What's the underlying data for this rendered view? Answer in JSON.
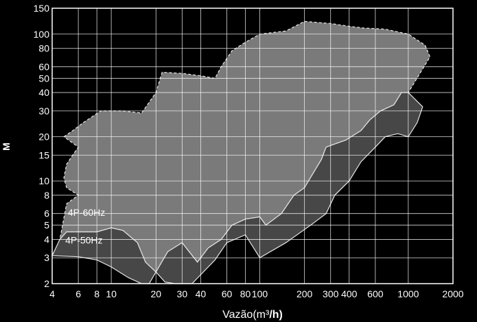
{
  "chart_data": {
    "type": "area",
    "xlabel_main": "Vazão",
    "xlabel_unit_open": "(m³",
    "xlabel_unit_close": "/h)",
    "ylabel": "M",
    "xscale": "log",
    "yscale": "log",
    "xlim": [
      4,
      2000
    ],
    "ylim": [
      2,
      150
    ],
    "grid": true,
    "x_ticks": [
      4,
      6,
      8,
      10,
      20,
      30,
      40,
      60,
      80,
      100,
      200,
      300,
      400,
      600,
      1000,
      2000
    ],
    "x_tick_labels": [
      "4",
      "6",
      "8",
      "10",
      "20",
      "30",
      "40",
      "60",
      "80",
      "100",
      "200",
      "300",
      "400",
      "600",
      "1000",
      "2000"
    ],
    "y_ticks": [
      2,
      3,
      4,
      5,
      6,
      8,
      10,
      15,
      20,
      30,
      40,
      50,
      60,
      80,
      100,
      150
    ],
    "y_tick_labels": [
      "2",
      "3",
      "4",
      "5",
      "6",
      "8",
      "10",
      "15",
      "20",
      "30",
      "40",
      "50",
      "60",
      "80",
      "100",
      "150"
    ],
    "series": [
      {
        "name": "4P-60Hz",
        "color": "#7a7a7a",
        "outline": [
          [
            4.8,
            20
          ],
          [
            5.5,
            22
          ],
          [
            6.5,
            25
          ],
          [
            8.5,
            30
          ],
          [
            12,
            30
          ],
          [
            16,
            29
          ],
          [
            20,
            40
          ],
          [
            22,
            55
          ],
          [
            30,
            54
          ],
          [
            40,
            52
          ],
          [
            50,
            50
          ],
          [
            55,
            60
          ],
          [
            65,
            77
          ],
          [
            80,
            88
          ],
          [
            100,
            100
          ],
          [
            150,
            105
          ],
          [
            200,
            122
          ],
          [
            300,
            118
          ],
          [
            400,
            113
          ],
          [
            500,
            110
          ],
          [
            700,
            108
          ],
          [
            1000,
            100
          ],
          [
            1300,
            84
          ],
          [
            1400,
            70
          ],
          [
            1000,
            40
          ],
          [
            900,
            40
          ],
          [
            800,
            33
          ],
          [
            650,
            30
          ],
          [
            550,
            26
          ],
          [
            480,
            22
          ],
          [
            380,
            19
          ],
          [
            280,
            17
          ],
          [
            260,
            14
          ],
          [
            200,
            9
          ],
          [
            170,
            8
          ],
          [
            140,
            6
          ],
          [
            110,
            5
          ],
          [
            100,
            5.7
          ],
          [
            80,
            5.5
          ],
          [
            65,
            5
          ],
          [
            55,
            4
          ],
          [
            45,
            3.5
          ],
          [
            38,
            2.8
          ],
          [
            30,
            3.8
          ],
          [
            24,
            3.3
          ],
          [
            20,
            2.4
          ],
          [
            17,
            2.8
          ],
          [
            15,
            3.8
          ],
          [
            12,
            4.6
          ],
          [
            10,
            4.8
          ],
          [
            8,
            4.5
          ],
          [
            5,
            4.5
          ],
          [
            4.5,
            4
          ],
          [
            5,
            7
          ],
          [
            6,
            8
          ],
          [
            5,
            9
          ],
          [
            4.8,
            10.5
          ],
          [
            5,
            13
          ],
          [
            5.5,
            15
          ],
          [
            6,
            17
          ],
          [
            4.8,
            20
          ]
        ]
      },
      {
        "name": "4P-50Hz",
        "color": "#474747",
        "outline": [
          [
            4,
            3.1
          ],
          [
            6,
            3.05
          ],
          [
            8,
            2.9
          ],
          [
            10,
            2.6
          ],
          [
            13,
            2.2
          ],
          [
            16,
            2.0
          ],
          [
            18,
            2.0
          ],
          [
            20,
            2.4
          ],
          [
            23,
            2.05
          ],
          [
            27,
            2.0
          ],
          [
            35,
            2.0
          ],
          [
            40,
            2.3
          ],
          [
            50,
            2.9
          ],
          [
            60,
            3.8
          ],
          [
            80,
            4.3
          ],
          [
            100,
            3.0
          ],
          [
            150,
            3.8
          ],
          [
            220,
            5.0
          ],
          [
            280,
            6.0
          ],
          [
            320,
            8.0
          ],
          [
            400,
            10.0
          ],
          [
            480,
            13.5
          ],
          [
            600,
            17.0
          ],
          [
            700,
            20.0
          ],
          [
            850,
            21.0
          ],
          [
            1000,
            20.0
          ],
          [
            1150,
            25.0
          ],
          [
            1250,
            32.0
          ],
          [
            1000,
            40.0
          ],
          [
            900,
            40.0
          ],
          [
            800,
            33.0
          ],
          [
            650,
            30.0
          ],
          [
            550,
            26.0
          ],
          [
            480,
            22.0
          ],
          [
            380,
            19.0
          ],
          [
            280,
            17.0
          ],
          [
            260,
            14.0
          ],
          [
            200,
            9.0
          ],
          [
            170,
            8.0
          ],
          [
            140,
            6.0
          ],
          [
            110,
            5.0
          ],
          [
            100,
            5.7
          ],
          [
            80,
            5.5
          ],
          [
            65,
            5.0
          ],
          [
            55,
            4.0
          ],
          [
            45,
            3.5
          ],
          [
            38,
            2.8
          ],
          [
            30,
            3.8
          ],
          [
            24,
            3.3
          ],
          [
            20,
            2.4
          ],
          [
            17,
            2.8
          ],
          [
            15,
            3.8
          ],
          [
            12,
            4.6
          ],
          [
            10,
            4.8
          ],
          [
            8,
            4.5
          ],
          [
            5,
            4.5
          ],
          [
            4.5,
            4.0
          ],
          [
            4,
            3.1
          ]
        ]
      }
    ]
  }
}
